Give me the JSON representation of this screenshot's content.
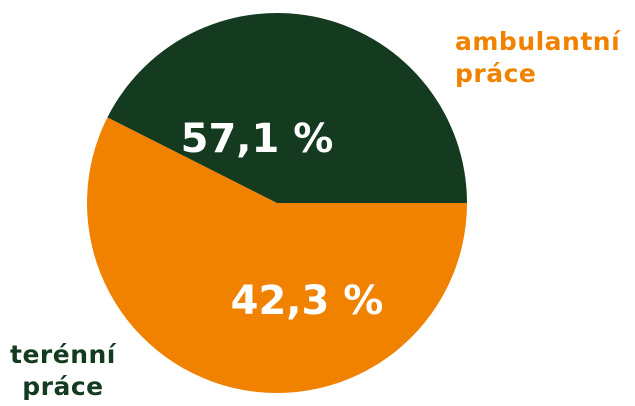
{
  "chart_data": {
    "type": "pie",
    "slices": [
      {
        "name": "ambulantní práce",
        "value": 57.1,
        "label": "57,1 %",
        "color": "#f08200",
        "legend_lines": [
          "ambulantní",
          "práce"
        ]
      },
      {
        "name": "terénní práce",
        "value": 42.3,
        "label": "42,3 %",
        "color": "#143a1f",
        "legend_lines": [
          "terénní",
          "práce"
        ]
      }
    ],
    "start_angle_deg": 0,
    "direction": "clockwise",
    "label_color": "#ffffff"
  }
}
